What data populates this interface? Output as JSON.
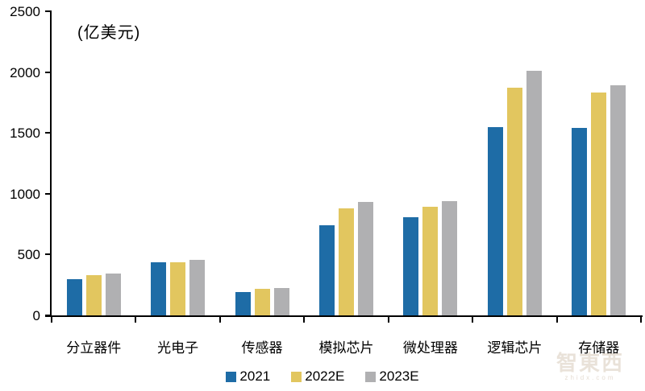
{
  "unit_label": "(亿美元)",
  "watermark": {
    "brand": "智東西",
    "domain": "zhidx.com"
  },
  "chart_data": {
    "type": "bar",
    "title": "",
    "unit_label": "(亿美元)",
    "xlabel": "",
    "ylabel": "",
    "categories": [
      "分立器件",
      "光电子",
      "传感器",
      "模拟芯片",
      "微处理器",
      "逻辑芯片",
      "存储器"
    ],
    "series": [
      {
        "name": "2021",
        "color": "#1E6CA6",
        "values": [
          300,
          435,
          190,
          740,
          805,
          1550,
          1540
        ]
      },
      {
        "name": "2022E",
        "color": "#E2C65F",
        "values": [
          330,
          435,
          215,
          880,
          895,
          1870,
          1830
        ]
      },
      {
        "name": "2023E",
        "color": "#B0B0B2",
        "values": [
          345,
          455,
          225,
          935,
          940,
          2010,
          1890
        ]
      }
    ],
    "ylim": [
      0,
      2500
    ],
    "yticks": [
      0,
      500,
      1000,
      1500,
      2000,
      2500
    ],
    "grid": false,
    "legend_position": "bottom",
    "axis_color": "#000000",
    "background_color": "#ffffff"
  }
}
